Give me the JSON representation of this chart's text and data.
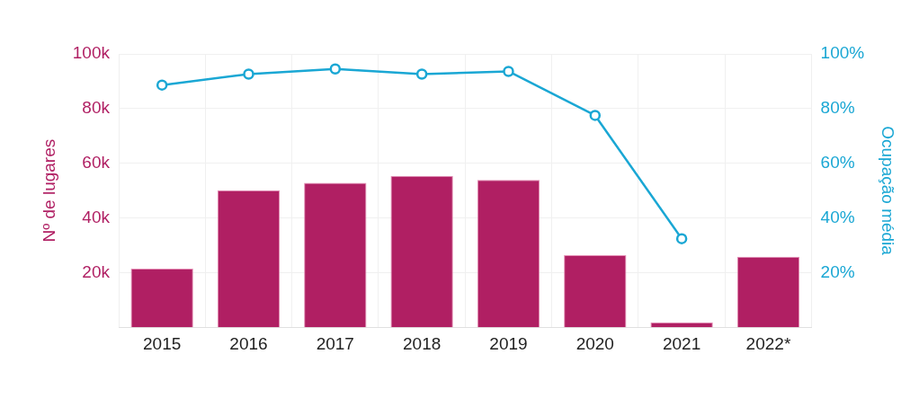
{
  "chart_data": {
    "type": "bar",
    "ylabel": "Nº de lugares",
    "y2label": "Ocupação média",
    "categories": [
      "2015",
      "2016",
      "2017",
      "2018",
      "2019",
      "2020",
      "2021",
      "2022*"
    ],
    "series": [
      {
        "color": "#b01f63",
        "values": [
          21400,
          50100,
          52800,
          55400,
          53900,
          26400,
          1800,
          25800
        ]
      },
      {
        "type": "line",
        "axis": "y2",
        "color": "#1aa7d4",
        "marker": "circle",
        "values": [
          88.6,
          92.6,
          94.5,
          92.6,
          93.6,
          77.5,
          32.4,
          null
        ]
      }
    ],
    "ylim": [
      0,
      100000
    ],
    "yticks": [
      {
        "value": 20000,
        "label": "20k"
      },
      {
        "value": 40000,
        "label": "40k"
      },
      {
        "value": 60000,
        "label": "60k"
      },
      {
        "value": 80000,
        "label": "80k"
      },
      {
        "value": 100000,
        "label": "100k"
      }
    ],
    "y2lim": [
      0,
      100
    ],
    "y2ticks": [
      {
        "value": 20,
        "label": "20%"
      },
      {
        "value": 40,
        "label": "40%"
      },
      {
        "value": 60,
        "label": "60%"
      },
      {
        "value": 80,
        "label": "80%"
      },
      {
        "value": 100,
        "label": "100%"
      }
    ],
    "grid": true
  }
}
